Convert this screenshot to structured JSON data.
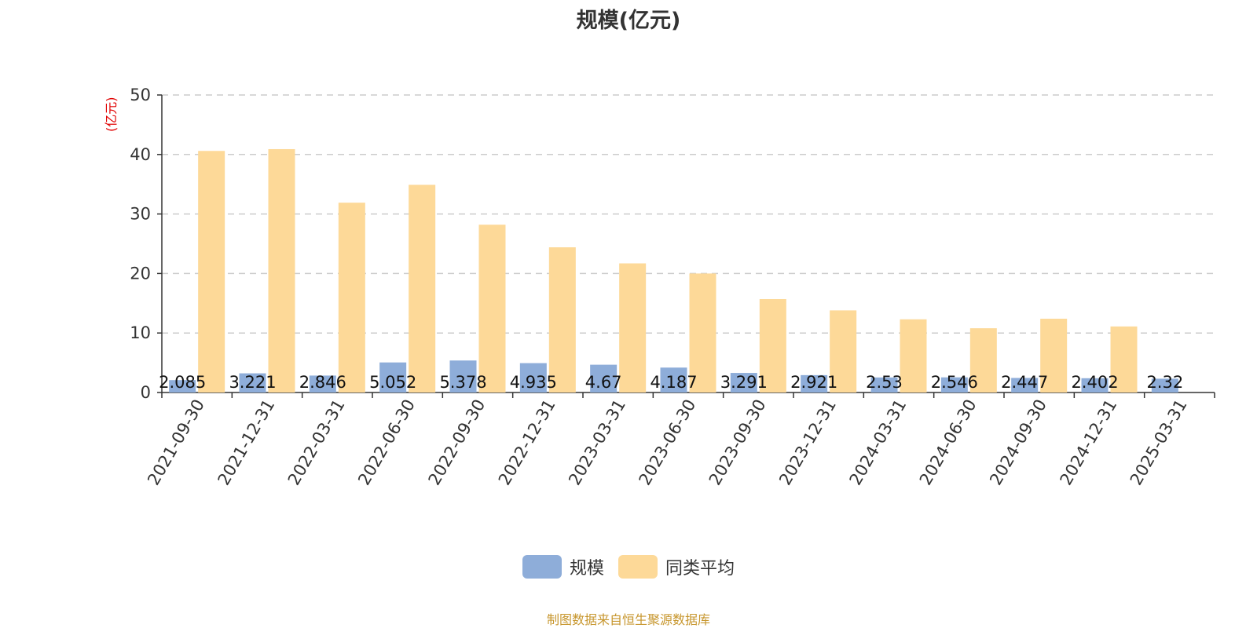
{
  "chart_data": {
    "type": "bar",
    "title": "规模(亿元)",
    "unit_label": "(亿元)",
    "categories": [
      "2021-09-30",
      "2021-12-31",
      "2022-03-31",
      "2022-06-30",
      "2022-09-30",
      "2022-12-31",
      "2023-03-31",
      "2023-06-30",
      "2023-09-30",
      "2023-12-31",
      "2024-03-31",
      "2024-06-30",
      "2024-09-30",
      "2024-12-31",
      "2025-03-31"
    ],
    "series": [
      {
        "name": "规模",
        "color": "#8eadd9",
        "values": [
          2.085,
          3.221,
          2.846,
          5.052,
          5.378,
          4.935,
          4.67,
          4.187,
          3.291,
          2.921,
          2.53,
          2.546,
          2.447,
          2.402,
          2.32
        ],
        "labels": [
          "2.085",
          "3.221",
          "2.846",
          "5.052",
          "5.378",
          "4.935",
          "4.67",
          "4.187",
          "3.291",
          "2.921",
          "2.53",
          "2.546",
          "2.447",
          "2.402",
          "2.32"
        ]
      },
      {
        "name": "同类平均",
        "color": "#fdd998",
        "values": [
          40.6,
          40.9,
          31.9,
          34.9,
          28.2,
          24.4,
          21.7,
          20.0,
          15.7,
          13.8,
          12.3,
          10.8,
          12.4,
          11.1,
          null
        ]
      }
    ],
    "y_ticks": [
      "0",
      "10",
      "20",
      "30",
      "40",
      "50"
    ],
    "ylim": [
      0,
      50
    ],
    "grid": "dashed horizontal",
    "legend_position": "bottom"
  },
  "source_note": "制图数据来自恒生聚源数据库"
}
